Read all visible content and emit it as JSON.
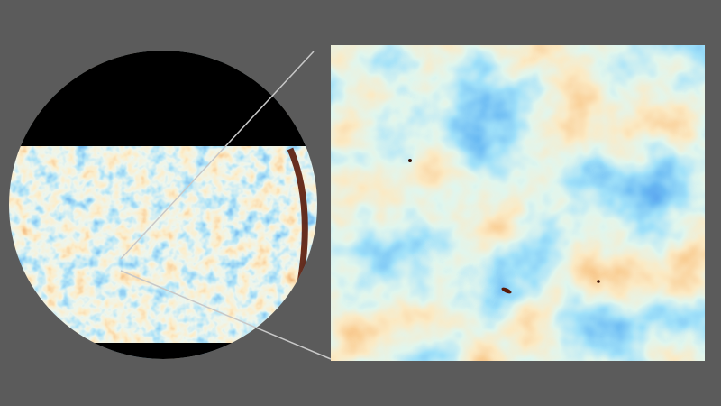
{
  "colors": {
    "background": "#5b5b5b",
    "mask": "#000000",
    "cold": "#1f5fd6",
    "cool": "#5fb3ea",
    "neutral": "#f5ecd0",
    "warm": "#f0b060",
    "hot": "#c8561c",
    "connector_lines": "#c8c8c8"
  }
}
